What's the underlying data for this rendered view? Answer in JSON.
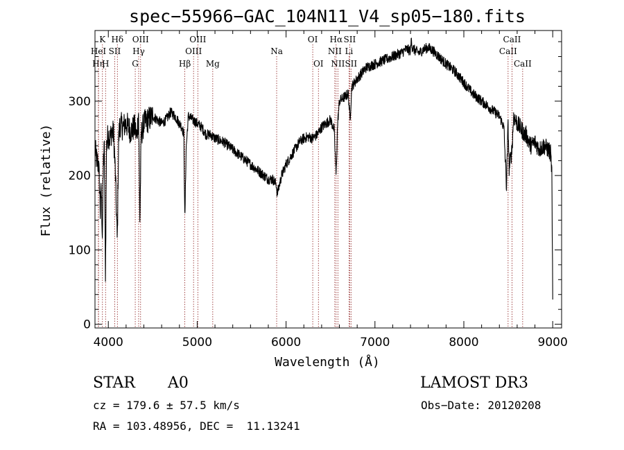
{
  "chart_data": {
    "type": "line",
    "title": "spec−55966−GAC_104N11_V4_sp05−180.fits",
    "xlabel": "Wavelength (Å)",
    "ylabel": "Flux (relative)",
    "xlim": [
      3850,
      9100
    ],
    "ylim": [
      -5,
      395
    ],
    "xticks": [
      4000,
      5000,
      6000,
      7000,
      8000,
      9000
    ],
    "yticks": [
      0,
      100,
      200,
      300
    ],
    "series": [
      {
        "name": "flux",
        "x": [
          3850,
          3870,
          3890,
          3900,
          3910,
          3920,
          3933,
          3945,
          3955,
          3968,
          3980,
          3990,
          4000,
          4020,
          4040,
          4060,
          4080,
          4101,
          4115,
          4130,
          4160,
          4200,
          4250,
          4300,
          4320,
          4340,
          4355,
          4370,
          4400,
          4450,
          4500,
          4550,
          4600,
          4650,
          4700,
          4750,
          4800,
          4830,
          4850,
          4861,
          4875,
          4900,
          4950,
          5000,
          5050,
          5100,
          5150,
          5200,
          5300,
          5400,
          5500,
          5600,
          5700,
          5750,
          5800,
          5850,
          5890,
          5900,
          5950,
          6000,
          6050,
          6100,
          6150,
          6200,
          6250,
          6300,
          6350,
          6400,
          6450,
          6500,
          6540,
          6563,
          6580,
          6600,
          6650,
          6700,
          6720,
          6740,
          6800,
          6900,
          7000,
          7100,
          7200,
          7300,
          7350,
          7400,
          7410,
          7420,
          7450,
          7500,
          7550,
          7600,
          7650,
          7700,
          7800,
          7900,
          8000,
          8100,
          8200,
          8300,
          8400,
          8450,
          8480,
          8498,
          8510,
          8542,
          8560,
          8600,
          8662,
          8680,
          8700,
          8750,
          8800,
          8850,
          8900,
          8950,
          8975,
          8990,
          9000
        ],
        "values": [
          235,
          220,
          215,
          190,
          150,
          185,
          120,
          220,
          235,
          65,
          240,
          250,
          255,
          250,
          260,
          255,
          200,
          110,
          245,
          270,
          265,
          270,
          260,
          265,
          250,
          285,
          140,
          255,
          270,
          275,
          280,
          275,
          270,
          275,
          285,
          280,
          270,
          265,
          255,
          135,
          235,
          280,
          275,
          270,
          265,
          255,
          255,
          250,
          245,
          235,
          225,
          215,
          205,
          200,
          195,
          195,
          188,
          175,
          200,
          215,
          225,
          235,
          245,
          250,
          252,
          250,
          255,
          265,
          270,
          275,
          262,
          200,
          270,
          300,
          305,
          310,
          275,
          320,
          330,
          345,
          350,
          355,
          360,
          365,
          370,
          368,
          385,
          372,
          368,
          365,
          370,
          372,
          368,
          362,
          350,
          340,
          325,
          310,
          300,
          290,
          280,
          265,
          185,
          270,
          210,
          235,
          280,
          270,
          260,
          255,
          255,
          240,
          245,
          235,
          240,
          235,
          230,
          205,
          30
        ]
      }
    ],
    "lines": [
      {
        "x": 3889,
        "label": "Hη",
        "row": 3
      },
      {
        "x": 3889,
        "label": "HeI",
        "row": 2
      },
      {
        "x": 3934,
        "label": "K",
        "row": 1
      },
      {
        "x": 3969,
        "label": "H",
        "row": 3
      },
      {
        "x": 4072,
        "label": "SII",
        "row": 2
      },
      {
        "x": 4102,
        "label": "Hδ",
        "row": 1
      },
      {
        "x": 4303,
        "label": "G",
        "row": 3
      },
      {
        "x": 4341,
        "label": "Hγ",
        "row": 2
      },
      {
        "x": 4363,
        "label": "OIII",
        "row": 1
      },
      {
        "x": 4861,
        "label": "Hβ",
        "row": 3
      },
      {
        "x": 4959,
        "label": "OIII",
        "row": 2
      },
      {
        "x": 5007,
        "label": "OIII",
        "row": 1
      },
      {
        "x": 5175,
        "label": "Mg",
        "row": 3
      },
      {
        "x": 5894,
        "label": "Na",
        "row": 2
      },
      {
        "x": 6300,
        "label": "OI",
        "row": 1
      },
      {
        "x": 6364,
        "label": "OI",
        "row": 3
      },
      {
        "x": 6548,
        "label": "NII",
        "row": 2
      },
      {
        "x": 6563,
        "label": "Hα",
        "row": 1
      },
      {
        "x": 6583,
        "label": "NII",
        "row": 3
      },
      {
        "x": 6708,
        "label": "Li",
        "row": 2
      },
      {
        "x": 6716,
        "label": "SII",
        "row": 1
      },
      {
        "x": 6731,
        "label": "SII",
        "row": 3
      },
      {
        "x": 8498,
        "label": "CaII",
        "row": 2
      },
      {
        "x": 8542,
        "label": "CaII",
        "row": 1
      },
      {
        "x": 8662,
        "label": "CaII",
        "row": 3
      }
    ]
  },
  "info": {
    "object_class": "STAR",
    "subclass": "A0",
    "survey": "LAMOST DR3",
    "redshift": "cz = 179.6 ± 57.5 km/s",
    "obs_date": "Obs−Date: 20120208",
    "coords": "RA = 103.48956, DEC =  11.13241"
  },
  "colors": {
    "spectrum": "#000000",
    "line_marker": "#8b1a1a"
  }
}
